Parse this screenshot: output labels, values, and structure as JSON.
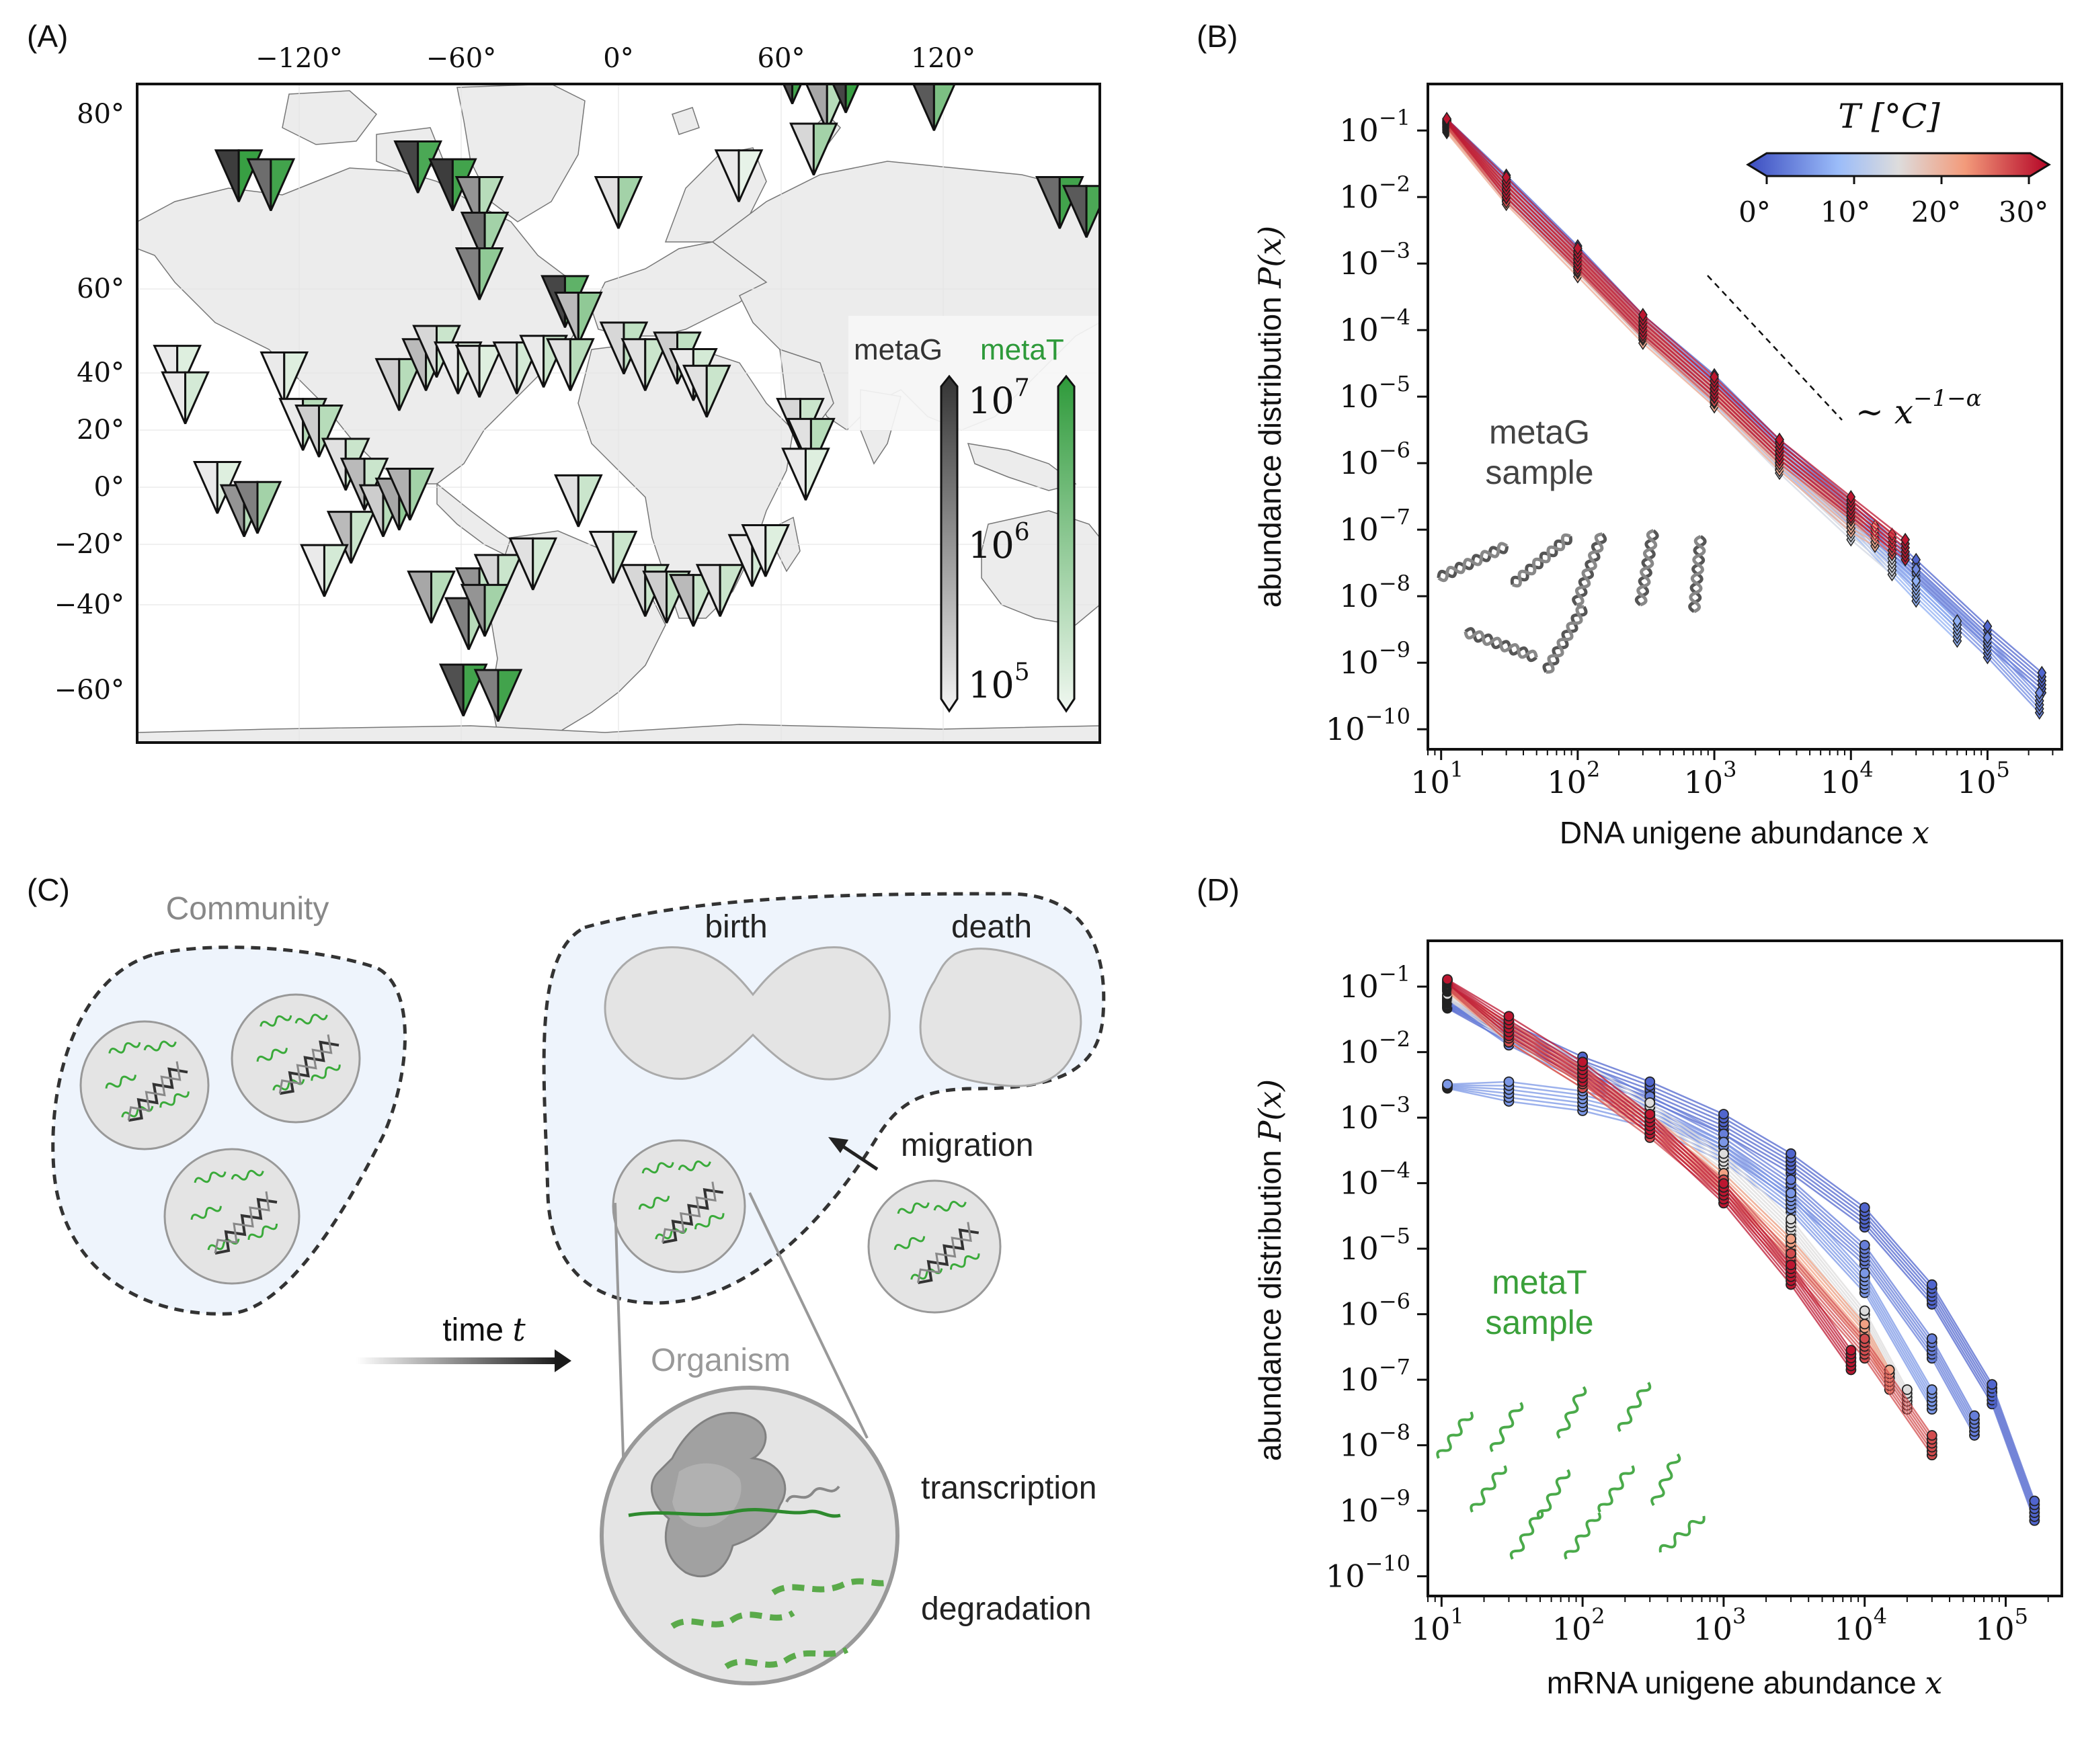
{
  "panel_labels": {
    "a": "(A)",
    "b": "(B)",
    "c": "(C)",
    "d": "(D)"
  },
  "colors": {
    "metaG_dark": "#333333",
    "metaT_green": "#2e9a3a",
    "cold_blue": "#3a4fc8",
    "warm_red": "#b2182b",
    "map_land": "#ececec",
    "community_fill": "#eef4fc",
    "cell_fill": "#e4e4e4"
  },
  "panel_a": {
    "lon_ticks": [
      "−120°",
      "−60°",
      "0°",
      "60°",
      "120°"
    ],
    "lat_ticks": [
      "80°",
      "60°",
      "40°",
      "20°",
      "0°",
      "−20°",
      "−40°",
      "−60°"
    ],
    "legend_metaG": "metaG",
    "legend_metaT": "metaT",
    "colorbar_ticks": [
      {
        "base": "10",
        "exp": "7"
      },
      {
        "base": "10",
        "exp": "6"
      },
      {
        "base": "10",
        "exp": "5"
      }
    ],
    "markers": [
      {
        "lon": -142,
        "lat": 73,
        "g": 0.95,
        "t": 0.95
      },
      {
        "lon": -130,
        "lat": 72,
        "g": 0.7,
        "t": 0.9
      },
      {
        "lon": -75,
        "lat": 74,
        "g": 0.9,
        "t": 0.85
      },
      {
        "lon": -62,
        "lat": 72,
        "g": 0.95,
        "t": 0.9
      },
      {
        "lon": -52,
        "lat": 70,
        "g": 0.5,
        "t": 0.3
      },
      {
        "lon": -50,
        "lat": 66,
        "g": 0.7,
        "t": 0.4
      },
      {
        "lon": -52,
        "lat": 62,
        "g": 0.6,
        "t": 0.5
      },
      {
        "lon": -20,
        "lat": 57,
        "g": 0.9,
        "t": 0.75
      },
      {
        "lon": -15,
        "lat": 52,
        "g": 0.3,
        "t": 0.5
      },
      {
        "lon": 0,
        "lat": 70,
        "g": 0.1,
        "t": 0.4
      },
      {
        "lon": 65,
        "lat": 84,
        "g": 0.85,
        "t": 0.9
      },
      {
        "lon": 78,
        "lat": 81,
        "g": 0.4,
        "t": 0.3
      },
      {
        "lon": 85,
        "lat": 83,
        "g": 0.9,
        "t": 0.95
      },
      {
        "lon": 73,
        "lat": 76,
        "g": 0.15,
        "t": 0.4
      },
      {
        "lon": 118,
        "lat": 81,
        "g": 0.8,
        "t": 0.6
      },
      {
        "lon": 45,
        "lat": 73,
        "g": 0.05,
        "t": 0.05
      },
      {
        "lon": 165,
        "lat": 70,
        "g": 0.7,
        "t": 0.9
      },
      {
        "lon": 175,
        "lat": 69,
        "g": 0.8,
        "t": 0.85
      },
      {
        "lon": -165,
        "lat": 36,
        "g": 0.05,
        "t": 0.1
      },
      {
        "lon": -162,
        "lat": 28,
        "g": 0.05,
        "t": 0.15
      },
      {
        "lon": -125,
        "lat": 34,
        "g": 0.05,
        "t": 0.1
      },
      {
        "lon": -118,
        "lat": 20,
        "g": 0.05,
        "t": 0.3
      },
      {
        "lon": -112,
        "lat": 18,
        "g": 0.2,
        "t": 0.3
      },
      {
        "lon": -102,
        "lat": 8,
        "g": 0.1,
        "t": 0.2
      },
      {
        "lon": -95,
        "lat": 2,
        "g": 0.3,
        "t": 0.2
      },
      {
        "lon": -82,
        "lat": 32,
        "g": 0.2,
        "t": 0.3
      },
      {
        "lon": -72,
        "lat": 38,
        "g": 0.3,
        "t": 0.2
      },
      {
        "lon": -68,
        "lat": 42,
        "g": 0.15,
        "t": 0.2
      },
      {
        "lon": -60,
        "lat": 37,
        "g": 0.05,
        "t": 0.1
      },
      {
        "lon": -52,
        "lat": 36,
        "g": 0.1,
        "t": 0.1
      },
      {
        "lon": -38,
        "lat": 37,
        "g": 0.1,
        "t": 0.15
      },
      {
        "lon": -28,
        "lat": 39,
        "g": 0.05,
        "t": 0.2
      },
      {
        "lon": -18,
        "lat": 38,
        "g": 0.1,
        "t": 0.3
      },
      {
        "lon": 2,
        "lat": 43,
        "g": 0.15,
        "t": 0.25
      },
      {
        "lon": 10,
        "lat": 38,
        "g": 0.1,
        "t": 0.2
      },
      {
        "lon": 22,
        "lat": 40,
        "g": 0.2,
        "t": 0.25
      },
      {
        "lon": 28,
        "lat": 35,
        "g": 0.05,
        "t": 0.15
      },
      {
        "lon": 33,
        "lat": 30,
        "g": 0.1,
        "t": 0.2
      },
      {
        "lon": 68,
        "lat": 20,
        "g": 0.15,
        "t": 0.2
      },
      {
        "lon": 72,
        "lat": 14,
        "g": 0.1,
        "t": 0.3
      },
      {
        "lon": 70,
        "lat": 5,
        "g": 0.05,
        "t": 0.1
      },
      {
        "lon": -150,
        "lat": 1,
        "g": 0.05,
        "t": 0.1
      },
      {
        "lon": -140,
        "lat": -6,
        "g": 0.5,
        "t": 0.3
      },
      {
        "lon": -135,
        "lat": -5,
        "g": 0.6,
        "t": 0.4
      },
      {
        "lon": -100,
        "lat": -14,
        "g": 0.3,
        "t": 0.2
      },
      {
        "lon": -88,
        "lat": -6,
        "g": 0.2,
        "t": 0.3
      },
      {
        "lon": -82,
        "lat": -4,
        "g": 0.4,
        "t": 0.5
      },
      {
        "lon": -78,
        "lat": -1,
        "g": 0.35,
        "t": 0.4
      },
      {
        "lon": -110,
        "lat": -24,
        "g": 0.05,
        "t": 0.15
      },
      {
        "lon": -70,
        "lat": -32,
        "g": 0.4,
        "t": 0.3
      },
      {
        "lon": -52,
        "lat": -31,
        "g": 0.5,
        "t": 0.25
      },
      {
        "lon": -45,
        "lat": -27,
        "g": 0.15,
        "t": 0.2
      },
      {
        "lon": -32,
        "lat": -22,
        "g": 0.1,
        "t": 0.15
      },
      {
        "lon": -56,
        "lat": -40,
        "g": 0.6,
        "t": 0.3
      },
      {
        "lon": -50,
        "lat": -36,
        "g": 0.5,
        "t": 0.4
      },
      {
        "lon": -58,
        "lat": -60,
        "g": 0.85,
        "t": 0.9
      },
      {
        "lon": -45,
        "lat": -62,
        "g": 0.6,
        "t": 0.9
      },
      {
        "lon": -15,
        "lat": -3,
        "g": 0.1,
        "t": 0.2
      },
      {
        "lon": -2,
        "lat": -20,
        "g": 0.05,
        "t": 0.2
      },
      {
        "lon": 10,
        "lat": -30,
        "g": 0.15,
        "t": 0.2
      },
      {
        "lon": 18,
        "lat": -32,
        "g": 0.2,
        "t": 0.25
      },
      {
        "lon": 28,
        "lat": -33,
        "g": 0.3,
        "t": 0.2
      },
      {
        "lon": 38,
        "lat": -30,
        "g": 0.1,
        "t": 0.2
      },
      {
        "lon": 50,
        "lat": -21,
        "g": 0.05,
        "t": 0.15
      },
      {
        "lon": 55,
        "lat": -18,
        "g": 0.05,
        "t": 0.1
      }
    ]
  },
  "panel_b": {
    "ylabel": "abundance distribution",
    "ylabel_math": "P(x)",
    "xlabel": "DNA unigene abundance",
    "xlabel_var": "x",
    "sample_label_l1": "metaG",
    "sample_label_l2": "sample",
    "scaling_tilde": "∼",
    "scaling_base": "x",
    "scaling_exp": "−1−α",
    "colorbar_title": "T [°C]",
    "colorbar_ticks": [
      "0°",
      "10°",
      "20°",
      "30°"
    ],
    "x_ticks": [
      {
        "b": "10",
        "e": "1"
      },
      {
        "b": "10",
        "e": "2"
      },
      {
        "b": "10",
        "e": "3"
      },
      {
        "b": "10",
        "e": "4"
      },
      {
        "b": "10",
        "e": "5"
      }
    ],
    "y_ticks": [
      {
        "b": "10",
        "e": "−1"
      },
      {
        "b": "10",
        "e": "−2"
      },
      {
        "b": "10",
        "e": "−3"
      },
      {
        "b": "10",
        "e": "−4"
      },
      {
        "b": "10",
        "e": "−5"
      },
      {
        "b": "10",
        "e": "−6"
      },
      {
        "b": "10",
        "e": "−7"
      },
      {
        "b": "10",
        "e": "−8"
      },
      {
        "b": "10",
        "e": "−9"
      },
      {
        "b": "10",
        "e": "−10"
      }
    ]
  },
  "panel_d": {
    "ylabel": "abundance distribution",
    "ylabel_math": "P(x)",
    "xlabel": "mRNA unigene abundance",
    "xlabel_var": "x",
    "sample_label_l1": "metaT",
    "sample_label_l2": "sample",
    "x_ticks": [
      {
        "b": "10",
        "e": "1"
      },
      {
        "b": "10",
        "e": "2"
      },
      {
        "b": "10",
        "e": "3"
      },
      {
        "b": "10",
        "e": "4"
      },
      {
        "b": "10",
        "e": "5"
      }
    ],
    "y_ticks": [
      {
        "b": "10",
        "e": "−1"
      },
      {
        "b": "10",
        "e": "−2"
      },
      {
        "b": "10",
        "e": "−3"
      },
      {
        "b": "10",
        "e": "−4"
      },
      {
        "b": "10",
        "e": "−5"
      },
      {
        "b": "10",
        "e": "−6"
      },
      {
        "b": "10",
        "e": "−7"
      },
      {
        "b": "10",
        "e": "−8"
      },
      {
        "b": "10",
        "e": "−9"
      },
      {
        "b": "10",
        "e": "−10"
      }
    ]
  },
  "chart_data": [
    {
      "type": "line",
      "xlabel": "DNA unigene abundance x",
      "ylabel": "abundance distribution P(x)",
      "xscale": "log",
      "yscale": "log",
      "xlim": [
        8,
        350000
      ],
      "ylim": [
        5e-11,
        0.5
      ],
      "colorbar": {
        "title": "T [°C]",
        "range": [
          0,
          30
        ],
        "ticks": [
          0,
          10,
          20,
          30
        ]
      },
      "reference_slope": -1.55,
      "series": [
        {
          "T": 2,
          "x": [
            11,
            30,
            100,
            300,
            1000,
            3000,
            10000,
            30000,
            100000,
            250000
          ],
          "y": [
            0.14,
            0.015,
            0.0013,
            0.00012,
            1.5e-05,
            1.6e-06,
            2e-07,
            2.5e-08,
            2.5e-09,
            5e-10
          ]
        },
        {
          "T": 5,
          "x": [
            11,
            30,
            100,
            300,
            1000,
            3000,
            10000,
            30000,
            100000,
            240000
          ],
          "y": [
            0.13,
            0.014,
            0.0012,
            0.00011,
            1.3e-05,
            1.5e-06,
            1.6e-07,
            1.8e-08,
            1.7e-09,
            2.5e-10
          ]
        },
        {
          "T": 8,
          "x": [
            11,
            30,
            100,
            300,
            1000,
            3000,
            10000,
            30000,
            60000
          ],
          "y": [
            0.12,
            0.013,
            0.0011,
            0.0001,
            1.1e-05,
            1.2e-06,
            1.3e-07,
            1.2e-08,
            3e-09
          ]
        },
        {
          "T": 14,
          "x": [
            11,
            30,
            100,
            300,
            1000,
            3000,
            10000,
            20000
          ],
          "y": [
            0.11,
            0.012,
            0.001,
            0.0001,
            1e-05,
            1e-06,
            1e-07,
            3e-08
          ]
        },
        {
          "T": 20,
          "x": [
            11,
            30,
            100,
            300,
            1000,
            3000,
            10000,
            15000
          ],
          "y": [
            0.1,
            0.011,
            0.0009,
            9e-05,
            1e-05,
            1.1e-06,
            1.3e-07,
            8e-08
          ]
        },
        {
          "T": 26,
          "x": [
            11,
            30,
            100,
            300,
            1000,
            3000,
            10000,
            20000
          ],
          "y": [
            0.12,
            0.012,
            0.0011,
            0.00011,
            1.2e-05,
            1.4e-06,
            2e-07,
            6e-08
          ]
        },
        {
          "T": 29,
          "x": [
            11,
            30,
            100,
            300,
            1000,
            3000,
            10000,
            25000
          ],
          "y": [
            0.14,
            0.014,
            0.0012,
            0.00012,
            1.4e-05,
            1.6e-06,
            2.2e-07,
            5e-08
          ]
        }
      ]
    },
    {
      "type": "line",
      "xlabel": "mRNA unigene abundance x",
      "ylabel": "abundance distribution P(x)",
      "xscale": "log",
      "yscale": "log",
      "xlim": [
        8,
        250000
      ],
      "ylim": [
        5e-11,
        0.5
      ],
      "series": [
        {
          "T": 2,
          "x": [
            11,
            30,
            100,
            300,
            1000,
            3000,
            10000,
            30000,
            80000,
            160000
          ],
          "y": [
            0.05,
            0.02,
            0.006,
            0.0025,
            0.0008,
            0.0002,
            3e-05,
            2e-06,
            6e-08,
            1e-09
          ]
        },
        {
          "T": 4,
          "x": [
            11,
            30,
            100,
            300,
            1000,
            3000,
            10000,
            30000,
            60000
          ],
          "y": [
            0.06,
            0.018,
            0.005,
            0.0015,
            0.0004,
            8e-05,
            8e-06,
            3e-07,
            2e-08
          ]
        },
        {
          "T": 6,
          "x": [
            11,
            30,
            100,
            300,
            1000,
            3000,
            10000,
            30000
          ],
          "y": [
            0.003,
            0.0025,
            0.0018,
            0.001,
            0.0003,
            5e-05,
            3e-06,
            5e-08
          ]
        },
        {
          "T": 15,
          "x": [
            11,
            30,
            100,
            300,
            1000,
            3000,
            10000,
            20000
          ],
          "y": [
            0.07,
            0.02,
            0.005,
            0.0012,
            0.0002,
            2e-05,
            8e-07,
            5e-08
          ]
        },
        {
          "T": 21,
          "x": [
            11,
            30,
            100,
            300,
            1000,
            3000,
            10000,
            15000
          ],
          "y": [
            0.09,
            0.02,
            0.004,
            0.0008,
            0.0001,
            1e-05,
            5e-07,
            1e-07
          ]
        },
        {
          "T": 26,
          "x": [
            11,
            30,
            100,
            300,
            1000,
            3000,
            10000,
            30000
          ],
          "y": [
            0.1,
            0.02,
            0.004,
            0.0007,
            8e-05,
            6e-06,
            3e-07,
            1e-08
          ]
        },
        {
          "T": 29,
          "x": [
            11,
            30,
            100,
            300,
            1000,
            3000,
            8000
          ],
          "y": [
            0.12,
            0.025,
            0.005,
            0.0008,
            7e-05,
            4e-06,
            2e-07
          ]
        }
      ]
    }
  ],
  "panel_c": {
    "community": "Community",
    "birth": "birth",
    "death": "death",
    "migration": "migration",
    "time_label": "time",
    "time_var": "t",
    "organism": "Organism",
    "transcription": "transcription",
    "degradation": "degradation"
  }
}
